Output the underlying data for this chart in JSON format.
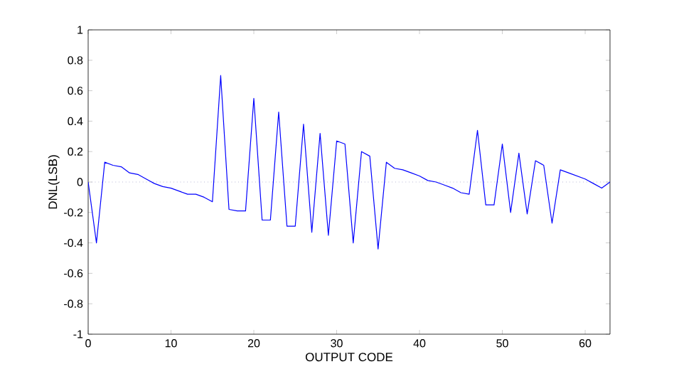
{
  "chart_data": {
    "type": "line",
    "xlabel": "OUTPUT CODE",
    "ylabel": "DNL(LSB)",
    "x": [
      0,
      1,
      2,
      3,
      4,
      5,
      6,
      7,
      8,
      9,
      10,
      11,
      12,
      13,
      14,
      15,
      16,
      17,
      18,
      19,
      20,
      21,
      22,
      23,
      24,
      25,
      26,
      27,
      28,
      29,
      30,
      31,
      32,
      33,
      34,
      35,
      36,
      37,
      38,
      39,
      40,
      41,
      42,
      43,
      44,
      45,
      46,
      47,
      48,
      49,
      50,
      51,
      52,
      53,
      54,
      55,
      56,
      57,
      58,
      59,
      60,
      61,
      62,
      63
    ],
    "series": [
      {
        "color": "#0000ff",
        "values": [
          0,
          -0.4,
          0.13,
          0.11,
          0.1,
          0.06,
          0.05,
          0.02,
          -0.01,
          -0.03,
          -0.04,
          -0.06,
          -0.08,
          -0.08,
          -0.1,
          -0.13,
          0.7,
          -0.18,
          -0.19,
          -0.19,
          0.55,
          -0.25,
          -0.25,
          0.46,
          -0.29,
          -0.29,
          0.38,
          -0.33,
          0.32,
          -0.35,
          0.27,
          0.25,
          -0.4,
          0.2,
          0.17,
          -0.44,
          0.13,
          0.09,
          0.08,
          0.06,
          0.04,
          0.01,
          0,
          -0.02,
          -0.04,
          -0.07,
          -0.08,
          0.34,
          -0.15,
          -0.15,
          0.25,
          -0.2,
          0.19,
          -0.21,
          0.14,
          0.11,
          -0.27,
          0.08,
          0.06,
          0.04,
          0.02,
          -0.01,
          -0.04,
          0
        ]
      }
    ],
    "xlim": [
      0,
      63
    ],
    "ylim": [
      -1,
      1
    ],
    "xticks": [
      0,
      10,
      20,
      30,
      40,
      50,
      60
    ],
    "yticks": [
      -1,
      -0.8,
      -0.6,
      -0.4,
      -0.2,
      0,
      0.2,
      0.4,
      0.6,
      0.8,
      1
    ],
    "ref_lines": [
      {
        "axis": "y",
        "value": 0,
        "color": "#9090c0",
        "line_style": "dotted"
      }
    ],
    "grid": false,
    "marker": "none",
    "line_style": "solid"
  }
}
